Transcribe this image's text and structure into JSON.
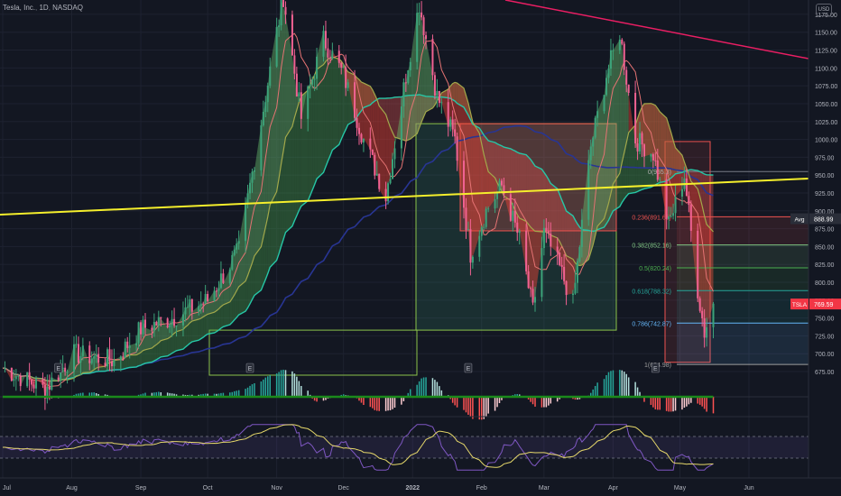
{
  "header": {
    "symbol": "Tesla, Inc.",
    "interval": "1D",
    "exchange": "NASDAQ"
  },
  "currency": "USD",
  "colors": {
    "background": "#131722",
    "grid": "#1e2230",
    "up": "#26a69a",
    "down": "#ef5350",
    "candle_up": "#3ca37a",
    "candle_down": "#f06292",
    "trend_yellow": "#f5ef2c",
    "trend_magenta": "#e91e63",
    "ma_blue": "#283593",
    "ma_teal": "#26c6a6",
    "ma_olive": "#a2a84b",
    "ma_pink": "#e57373",
    "axis_text": "#b2b5be",
    "rsi_line": "#7e57c2",
    "rsi_ma": "#e6d86a"
  },
  "chart_data": {
    "type": "candlestick",
    "x_axis": {
      "labels": [
        "Jul",
        "Aug",
        "Sep",
        "Oct",
        "Nov",
        "Dec",
        "2022",
        "Feb",
        "Mar",
        "Apr",
        "May",
        "Jun"
      ]
    },
    "y_axis": {
      "range": [
        670,
        1185
      ],
      "ticks": [
        675,
        700,
        725,
        750,
        775,
        800,
        825,
        850,
        875,
        900,
        925,
        950,
        975,
        1000,
        1025,
        1050,
        1075,
        1100,
        1125,
        1150,
        1175
      ],
      "tick_labels": [
        "675.00",
        "700.00",
        "725.00",
        "750.00",
        "775.00",
        "800.00",
        "825.00",
        "850.00",
        "875.00",
        "900.00",
        "925.00",
        "950.00",
        "975.00",
        "1000.00",
        "1025.00",
        "1050.00",
        "1075.00",
        "1100.00",
        "1125.00",
        "1150.00",
        "1175.00"
      ]
    },
    "price_path": [
      {
        "d": "2021-07-01",
        "c": 680
      },
      {
        "d": "2021-07-20",
        "c": 650
      },
      {
        "d": "2021-08-02",
        "c": 700
      },
      {
        "d": "2021-08-20",
        "c": 690
      },
      {
        "d": "2021-09-01",
        "c": 735
      },
      {
        "d": "2021-09-15",
        "c": 750
      },
      {
        "d": "2021-10-01",
        "c": 775
      },
      {
        "d": "2021-10-15",
        "c": 845
      },
      {
        "d": "2021-10-25",
        "c": 1025
      },
      {
        "d": "2021-11-01",
        "c": 1150
      },
      {
        "d": "2021-11-04",
        "c": 1200
      },
      {
        "d": "2021-11-12",
        "c": 1030
      },
      {
        "d": "2021-11-22",
        "c": 1140
      },
      {
        "d": "2021-12-01",
        "c": 1090
      },
      {
        "d": "2021-12-10",
        "c": 1000
      },
      {
        "d": "2021-12-20",
        "c": 920
      },
      {
        "d": "2021-12-29",
        "c": 1090
      },
      {
        "d": "2022-01-04",
        "c": 1190
      },
      {
        "d": "2022-01-12",
        "c": 1060
      },
      {
        "d": "2022-01-20",
        "c": 1000
      },
      {
        "d": "2022-01-27",
        "c": 840
      },
      {
        "d": "2022-02-03",
        "c": 900
      },
      {
        "d": "2022-02-10",
        "c": 935
      },
      {
        "d": "2022-02-18",
        "c": 860
      },
      {
        "d": "2022-02-24",
        "c": 760
      },
      {
        "d": "2022-03-01",
        "c": 870
      },
      {
        "d": "2022-03-08",
        "c": 820
      },
      {
        "d": "2022-03-14",
        "c": 770
      },
      {
        "d": "2022-03-22",
        "c": 990
      },
      {
        "d": "2022-03-29",
        "c": 1090
      },
      {
        "d": "2022-04-04",
        "c": 1150
      },
      {
        "d": "2022-04-11",
        "c": 1000
      },
      {
        "d": "2022-04-19",
        "c": 980
      },
      {
        "d": "2022-04-26",
        "c": 880
      },
      {
        "d": "2022-05-03",
        "c": 950
      },
      {
        "d": "2022-05-09",
        "c": 790
      },
      {
        "d": "2022-05-12",
        "c": 730
      },
      {
        "d": "2022-05-16",
        "c": 770
      }
    ],
    "fibonacci": [
      {
        "ratio": "0.236",
        "price": 891.66,
        "label": "0.236(891.66)"
      },
      {
        "ratio": "0.382",
        "price": 852.16,
        "label": "0.382(852.16)"
      },
      {
        "ratio": "0.5",
        "price": 820.24,
        "label": "0.5(820.24)"
      },
      {
        "ratio": "0.618",
        "price": 788.32,
        "label": "0.618(788.32)"
      },
      {
        "ratio": "0.786",
        "price": 742.87,
        "label": "0.786(742.87)"
      },
      {
        "ratio": "1",
        "price": 684.98,
        "label": "1(684.98)"
      }
    ],
    "fib_partial_label": "0(955.3)",
    "price_tags": [
      {
        "label": "Avg",
        "value": "888.99",
        "price": 888.99
      },
      {
        "label": "TSLA",
        "value": "769.59",
        "price": 769.59
      }
    ],
    "events_label": "E",
    "macd_axis": {
      "tick_label": "0.00"
    },
    "rsi_axis": {
      "tick_labels": [
        "100.00",
        "75.00",
        "50.00",
        "25.00"
      ],
      "bands": [
        70,
        30
      ]
    }
  }
}
